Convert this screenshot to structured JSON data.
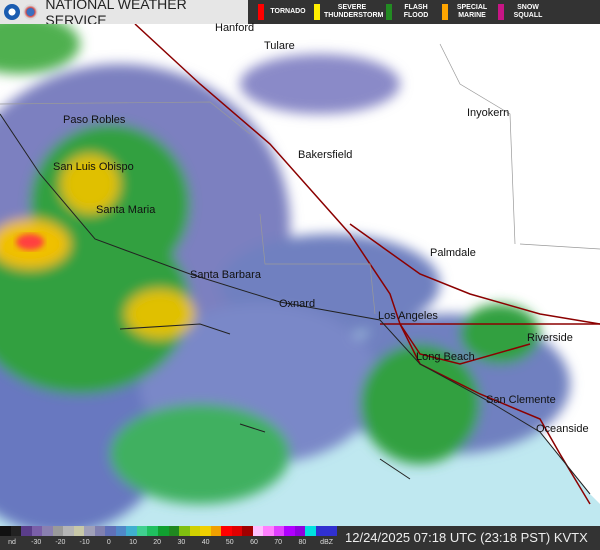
{
  "header": {
    "title": "NATIONAL WEATHER SERVICE",
    "warnings": [
      {
        "label": "TORNADO",
        "color": "#ff0000"
      },
      {
        "label": "SEVERE THUNDERSTORM",
        "color": "#ffee00"
      },
      {
        "label": "FLASH FLOOD",
        "color": "#228b22"
      },
      {
        "label": "SPECIAL MARINE",
        "color": "#ffa500"
      },
      {
        "label": "SNOW SQUALL",
        "color": "#c71585"
      }
    ]
  },
  "cities": [
    "Hanford",
    "Tulare",
    "Paso Robles",
    "Inyokern",
    "Bakersfield",
    "San Luis Obispo",
    "Santa Maria",
    "Palmdale",
    "Santa Barbara",
    "Oxnard",
    "Los Angeles",
    "Riverside",
    "Long Beach",
    "San Clemente",
    "Oceanside"
  ],
  "legend": {
    "ticks": [
      "nd",
      "-30",
      "-20",
      "-10",
      "0",
      "10",
      "20",
      "30",
      "40",
      "50",
      "60",
      "70",
      "80",
      "dBZ"
    ],
    "colors": [
      "#111",
      "#222",
      "#5a3d8a",
      "#7a5fa8",
      "#8a80b0",
      "#9a9a9a",
      "#b5b5b5",
      "#c8c8a8",
      "#a0a0b8",
      "#8080b0",
      "#6070b8",
      "#5088c8",
      "#40b0d0",
      "#40d090",
      "#20c060",
      "#10a030",
      "#208820",
      "#80c010",
      "#d0d000",
      "#f0d000",
      "#f0a000",
      "#ff0000",
      "#e00000",
      "#a00000",
      "#ffc0ff",
      "#ff80ff",
      "#e040ff",
      "#b000ff",
      "#9000e0",
      "#00e0e0",
      "#3030d0",
      "#3030d0"
    ]
  },
  "timestamp": "12/24/2025 07:18 UTC (23:18 PST)  KVTX"
}
